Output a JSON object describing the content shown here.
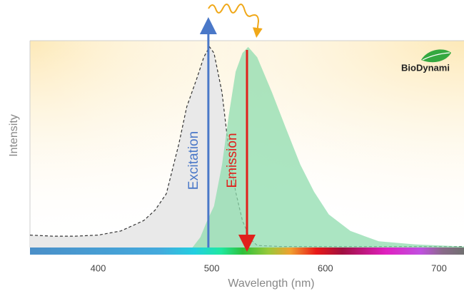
{
  "chart_data": {
    "type": "area",
    "x_label": "Wavelength (nm)",
    "y_label": "Intensity",
    "xlim": [
      340,
      722
    ],
    "ylim": [
      0,
      1
    ],
    "xticks": [
      400,
      500,
      600,
      700
    ],
    "grid": false,
    "series": [
      {
        "name": "Excitation",
        "color": "#4a78c8",
        "fill": "#e9e9e9",
        "line": "#333333",
        "x": [
          340,
          360,
          380,
          400,
          420,
          440,
          450,
          460,
          471,
          478,
          487,
          493,
          498,
          502,
          509,
          515,
          521,
          527,
          534,
          540,
          560,
          600,
          650,
          700,
          722
        ],
        "values": [
          0.06,
          0.055,
          0.055,
          0.06,
          0.08,
          0.13,
          0.18,
          0.26,
          0.5,
          0.68,
          0.82,
          0.92,
          0.97,
          0.94,
          0.75,
          0.47,
          0.27,
          0.13,
          0.04,
          0.01,
          0.005,
          0.005,
          0.005,
          0.005,
          0.005
        ],
        "peak": 497
      },
      {
        "name": "Emission",
        "color": "#e0201c",
        "fill": "#8fdcae",
        "line": "none",
        "x": [
          483,
          490,
          496,
          502,
          509,
          515,
          521,
          527,
          532,
          540,
          553,
          565,
          578,
          590,
          603,
          622,
          647,
          679,
          722
        ],
        "values": [
          0,
          0.05,
          0.13,
          0.2,
          0.4,
          0.64,
          0.85,
          0.94,
          0.97,
          0.92,
          0.75,
          0.58,
          0.4,
          0.27,
          0.16,
          0.08,
          0.03,
          0.015,
          0.005
        ],
        "peak": 531
      }
    ],
    "logo": "BioDynami"
  }
}
